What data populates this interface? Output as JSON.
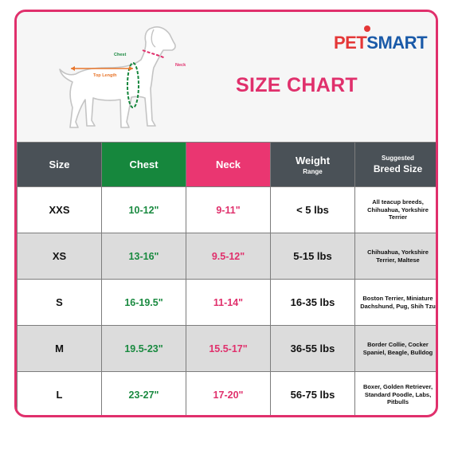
{
  "brand": {
    "pet": "PET",
    "smart": "SMART",
    "logo_colors": {
      "pet": "#e43737",
      "smart": "#1a5aa8"
    }
  },
  "title": "SIZE CHART",
  "diagram_labels": {
    "chest": "Chest",
    "neck": "Neck",
    "top_length": "Top Length"
  },
  "headers": {
    "size": "Size",
    "chest": "Chest",
    "neck": "Neck",
    "weight": "Weight",
    "weight_sub": "Range",
    "breed_top": "Suggested",
    "breed_main": "Breed Size"
  },
  "rows": [
    {
      "size": "XXS",
      "chest": "10-12\"",
      "neck": "9-11\"",
      "weight": "< 5 lbs",
      "breed": "All teacup breeds, Chihuahua, Yorkshire Terrier"
    },
    {
      "size": "XS",
      "chest": "13-16\"",
      "neck": "9.5-12\"",
      "weight": "5-15 lbs",
      "breed": "Chihuahua, Yorkshire Terrier, Maltese"
    },
    {
      "size": "S",
      "chest": "16-19.5\"",
      "neck": "11-14\"",
      "weight": "16-35 lbs",
      "breed": "Boston Terrier, Miniature Dachshund, Pug, Shih Tzu"
    },
    {
      "size": "M",
      "chest": "19.5-23\"",
      "neck": "15.5-17\"",
      "weight": "36-55 lbs",
      "breed": "Border Collie, Cocker Spaniel, Beagle, Bulldog"
    },
    {
      "size": "L",
      "chest": "23-27\"",
      "neck": "17-20\"",
      "weight": "56-75 lbs",
      "breed": "Boxer, Golden Retriever, Standard Poodle, Labs, Pitbulls"
    }
  ],
  "colors": {
    "accent": "#e0306c",
    "chest": "#16873d",
    "header_dark": "#4a5157",
    "alt_row": "#dcdcdc",
    "top_length": "#e8762c"
  }
}
